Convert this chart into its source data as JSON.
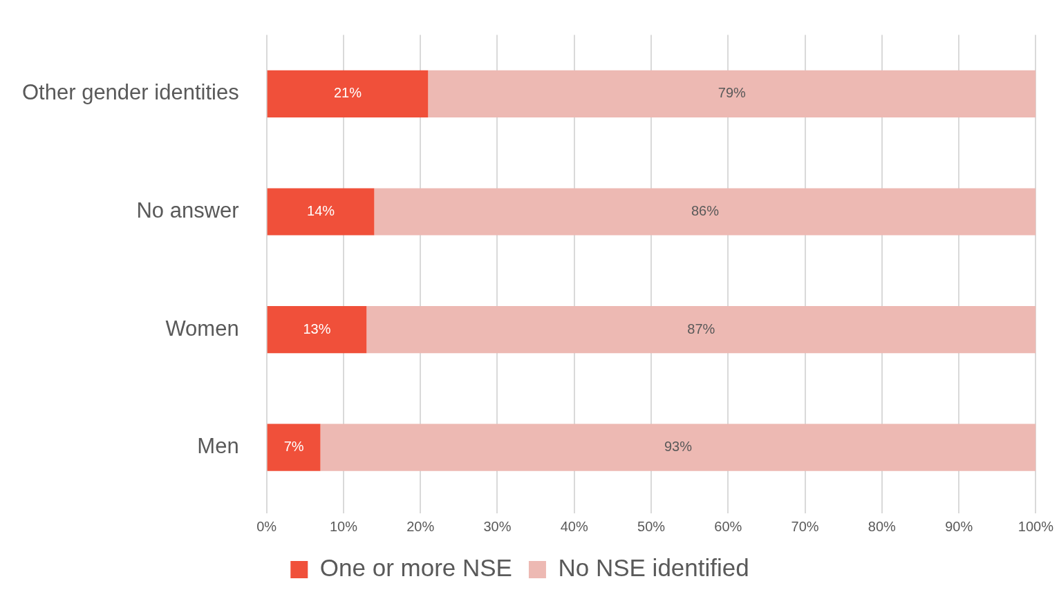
{
  "chart_data": {
    "type": "bar",
    "orientation": "horizontal",
    "stacked": true,
    "categories": [
      "Other gender identities",
      "No answer",
      "Women",
      "Men"
    ],
    "series": [
      {
        "name": "One or more NSE",
        "color": "#f0503a",
        "values": [
          21,
          14,
          13,
          7
        ],
        "value_labels": [
          "21%",
          "14%",
          "13%",
          "7%"
        ]
      },
      {
        "name": "No NSE identified",
        "color": "#edb9b3",
        "values": [
          79,
          86,
          87,
          93
        ],
        "value_labels": [
          "79%",
          "86%",
          "87%",
          "93%"
        ]
      }
    ],
    "xlim": [
      0,
      100
    ],
    "xticks": [
      {
        "value": 0,
        "label": "0%"
      },
      {
        "value": 10,
        "label": "10%"
      },
      {
        "value": 20,
        "label": "20%"
      },
      {
        "value": 30,
        "label": "30%"
      },
      {
        "value": 40,
        "label": "40%"
      },
      {
        "value": 50,
        "label": "50%"
      },
      {
        "value": 60,
        "label": "60%"
      },
      {
        "value": 70,
        "label": "70%"
      },
      {
        "value": 80,
        "label": "80%"
      },
      {
        "value": 90,
        "label": "90%"
      },
      {
        "value": 100,
        "label": "100%"
      }
    ],
    "grid": "x",
    "legend": "bottom"
  }
}
